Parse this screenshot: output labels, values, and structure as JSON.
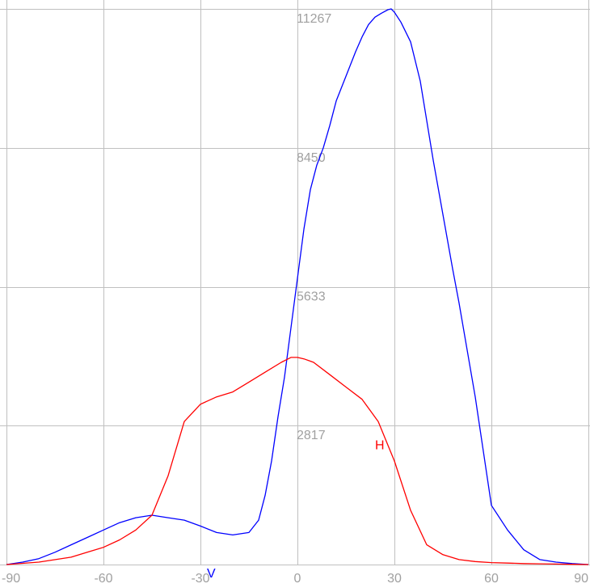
{
  "chart_data": {
    "type": "line",
    "title": "",
    "xlabel": "",
    "ylabel": "",
    "xlim": [
      -90,
      90
    ],
    "ylim": [
      0,
      11267
    ],
    "x_ticks": [
      "-90",
      "-60",
      "-30",
      "0",
      "30",
      "60",
      "90"
    ],
    "y_ticks": [
      "2817",
      "5633",
      "8450",
      "11267"
    ],
    "grid": true,
    "colors": {
      "V": "#0000ff",
      "H": "#ff0000",
      "grid": "#c0c0c0",
      "labels": "#a0a0a0"
    },
    "series": [
      {
        "name": "V",
        "color": "#0000ff",
        "x": [
          -90,
          -85,
          -80,
          -75,
          -70,
          -65,
          -60,
          -55,
          -50,
          -45,
          -40,
          -35,
          -30,
          -25,
          -20,
          -15,
          -12,
          -10,
          -8,
          -6,
          -4,
          -2,
          0,
          2,
          4,
          6,
          8,
          10,
          12,
          15,
          18,
          20,
          22,
          24,
          26,
          28,
          29,
          30,
          32,
          35,
          38,
          40,
          42,
          45,
          48,
          50,
          55,
          60,
          65,
          70,
          75,
          80,
          85,
          90
        ],
        "y": [
          0,
          50,
          120,
          250,
          400,
          550,
          700,
          850,
          950,
          1000,
          950,
          900,
          780,
          650,
          600,
          650,
          900,
          1400,
          2100,
          3000,
          3800,
          4800,
          5800,
          6800,
          7600,
          8100,
          8450,
          8900,
          9400,
          9900,
          10400,
          10700,
          10950,
          11100,
          11180,
          11250,
          11267,
          11200,
          11000,
          10600,
          9800,
          9000,
          8200,
          7100,
          6000,
          5300,
          3400,
          1200,
          700,
          300,
          100,
          50,
          20,
          0
        ]
      },
      {
        "name": "H",
        "color": "#ff0000",
        "x": [
          -90,
          -80,
          -70,
          -65,
          -60,
          -55,
          -50,
          -45,
          -40,
          -35,
          -30,
          -25,
          -20,
          -15,
          -10,
          -5,
          -2,
          0,
          2,
          5,
          10,
          15,
          20,
          25,
          30,
          35,
          40,
          45,
          50,
          55,
          60,
          65,
          70,
          75,
          80,
          85,
          90
        ],
        "y": [
          0,
          50,
          150,
          250,
          350,
          500,
          700,
          1000,
          1800,
          2900,
          3250,
          3400,
          3500,
          3700,
          3900,
          4100,
          4200,
          4200,
          4170,
          4100,
          3850,
          3600,
          3350,
          2900,
          2100,
          1100,
          400,
          200,
          100,
          60,
          40,
          30,
          20,
          15,
          10,
          5,
          0
        ]
      }
    ],
    "series_labels": [
      {
        "text": "V",
        "series": "V",
        "x": -28,
        "y": 0
      },
      {
        "text": "H",
        "series": "H",
        "x": 24,
        "y": 2600
      }
    ]
  }
}
